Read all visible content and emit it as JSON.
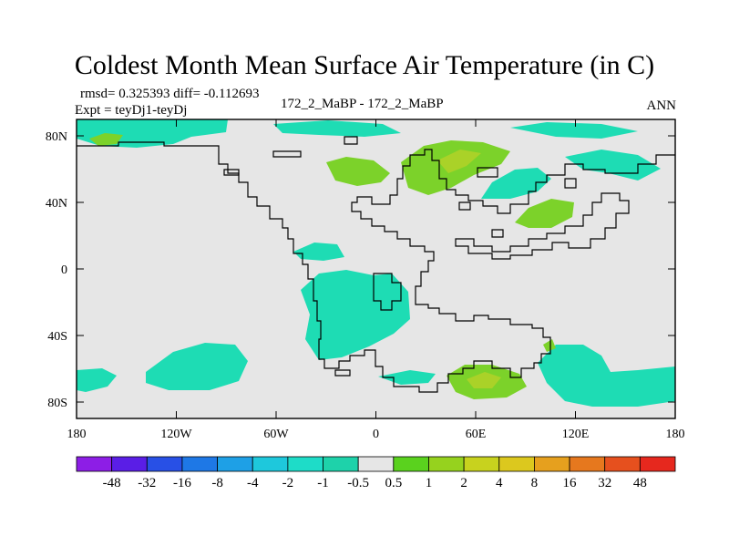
{
  "title": "Coldest Month Mean Surface Air Temperature (in C)",
  "subtitle": {
    "rmsd_line": "rmsd= 0.325393 diff= -0.112693",
    "expt_line": "Expt = teyDj1-teyDj",
    "center": "172_2_MaBP - 172_2_MaBP",
    "season": "ANN"
  },
  "map": {
    "ocean_color": "#e6e6e6",
    "lat_ticks": [
      "80N",
      "40N",
      "0",
      "40S",
      "80S"
    ],
    "lon_ticks": [
      "180",
      "120W",
      "60W",
      "0",
      "60E",
      "120E",
      "180"
    ]
  },
  "colorbar": {
    "colors": [
      "#8d1ee6",
      "#5a1ee6",
      "#2850e6",
      "#1e78e6",
      "#1ea0e6",
      "#1ec8dc",
      "#1edcc8",
      "#1ed2aa",
      "#e6e6e6",
      "#5ad21e",
      "#96d21e",
      "#c8d21e",
      "#dcc81e",
      "#e6a01e",
      "#e6781e",
      "#e6501e",
      "#e6281e"
    ],
    "labels": [
      "-48",
      "-32",
      "-16",
      "-8",
      "-4",
      "-2",
      "-1",
      "-0.5",
      "0.5",
      "1",
      "2",
      "4",
      "8",
      "16",
      "32",
      "48"
    ]
  },
  "anomaly_colors": {
    "green": "#7cd22a",
    "yellow_green": "#aad228",
    "teal": "#1edcb4",
    "cyan": "#1ec8d2"
  }
}
